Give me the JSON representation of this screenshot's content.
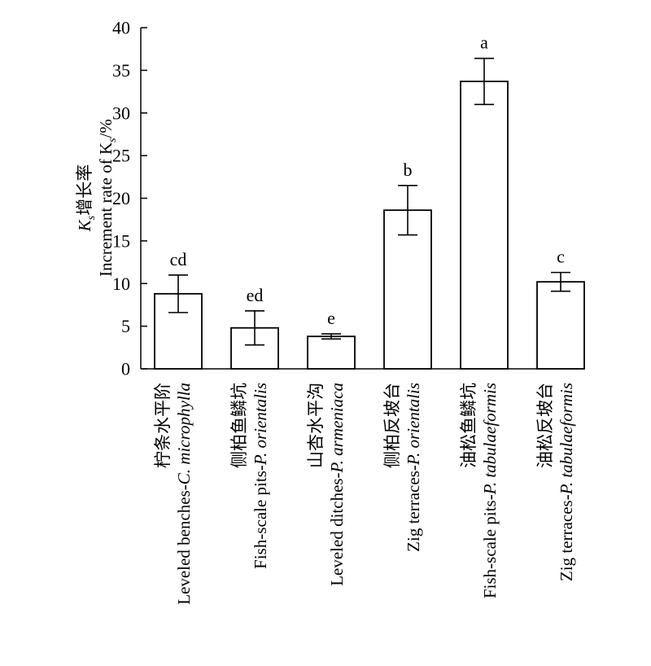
{
  "chart_data": {
    "type": "bar",
    "ylabel_line1_main": "K",
    "ylabel_line1_sub": "s",
    "ylabel_line1_rest": "增长率",
    "ylabel_line2_prefix": "Increment rate of K",
    "ylabel_line2_sub": "s",
    "ylabel_line2_suffix": "/%",
    "ylim": [
      0,
      40
    ],
    "yticks": [
      "0",
      "5",
      "10",
      "15",
      "20",
      "25",
      "30",
      "35",
      "40"
    ],
    "grid": false,
    "categories": [
      {
        "zh": "柠条水平阶",
        "en_prefix": "Leveled benches-",
        "en_species": "C. microphylla",
        "en_line2": ""
      },
      {
        "zh": "侧柏鱼鳞坑",
        "en_prefix": "Fish-scale pits-",
        "en_species": "P. orientalis",
        "en_line2": ""
      },
      {
        "zh": "山杏水平沟",
        "en_prefix": "Leveled ditches-",
        "en_species": "P. armeniaca",
        "en_line2": ""
      },
      {
        "zh": "侧柏反坡台",
        "en_prefix": "Zig terraces-",
        "en_species": "P. orientalis",
        "en_line2": ""
      },
      {
        "zh": "油松鱼鳞坑",
        "en_prefix": "Fish-scale pits-",
        "en_species": "P. tabulaeformis",
        "en_line2": ""
      },
      {
        "zh": "油松反坡台",
        "en_prefix": "Zig terraces-",
        "en_species": "P. tabulaeformis",
        "en_line2": ""
      }
    ],
    "values": [
      8.8,
      4.8,
      3.8,
      18.6,
      33.7,
      10.2
    ],
    "errors": [
      2.2,
      2.0,
      0.3,
      2.9,
      2.7,
      1.1
    ],
    "significance": [
      "cd",
      "ed",
      "e",
      "b",
      "a",
      "c"
    ]
  }
}
